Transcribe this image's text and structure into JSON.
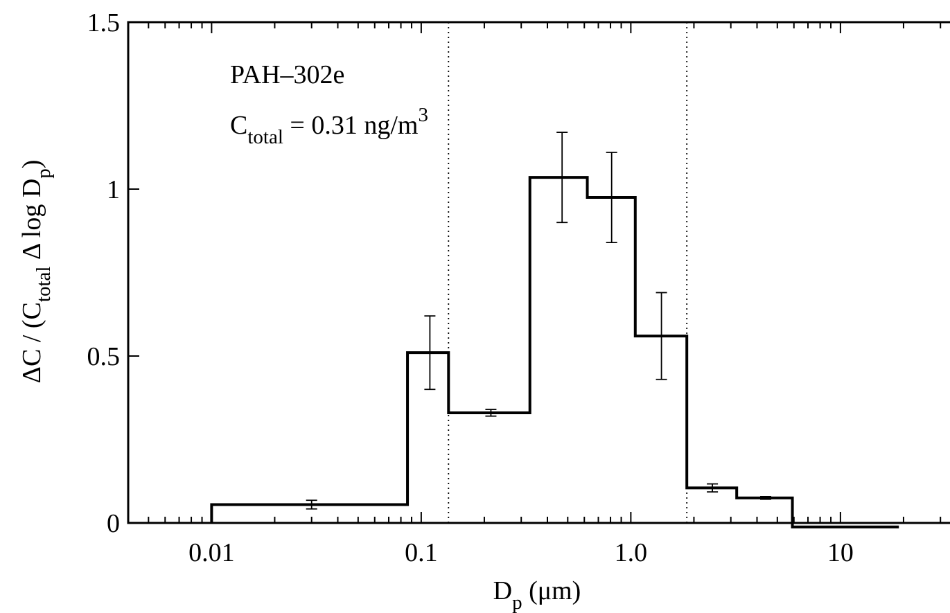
{
  "chart_data": {
    "type": "bar",
    "step_histogram": true,
    "x_scale": "log",
    "xlim": [
      0.004,
      40
    ],
    "ylim": [
      0,
      1.5
    ],
    "x_ticks": [
      {
        "value": 0.01,
        "label": "0.01"
      },
      {
        "value": 0.1,
        "label": "0.1"
      },
      {
        "value": 1.0,
        "label": "1.0"
      },
      {
        "value": 10,
        "label": "10"
      }
    ],
    "y_ticks": [
      {
        "value": 0,
        "label": "0"
      },
      {
        "value": 0.5,
        "label": "0.5"
      },
      {
        "value": 1,
        "label": "1"
      },
      {
        "value": 1.5,
        "label": "1.5"
      }
    ],
    "xlabel": {
      "main": "D",
      "sub": "p",
      "tail": "  (μm)"
    },
    "ylabel": {
      "p1": "ΔC / (C",
      "s1": "total",
      "p2": "  Δ log D",
      "s2": "p",
      "p3": ")"
    },
    "annotations": {
      "species": "PAH–302e",
      "total_main": "C",
      "total_sub": "total",
      "total_mid": " =  0.31 ng/m",
      "total_sup": "3"
    },
    "bins": [
      {
        "lo": 0.01,
        "hi": 0.086,
        "value": 0.055,
        "err_x": 0.03,
        "err_lo": 0.042,
        "err_hi": 0.068
      },
      {
        "lo": 0.086,
        "hi": 0.135,
        "value": 0.51,
        "err_x": 0.11,
        "err_lo": 0.4,
        "err_hi": 0.62
      },
      {
        "lo": 0.135,
        "hi": 0.33,
        "value": 0.33,
        "err_x": 0.215,
        "err_lo": 0.32,
        "err_hi": 0.34
      },
      {
        "lo": 0.33,
        "hi": 0.62,
        "value": 1.035,
        "err_x": 0.47,
        "err_lo": 0.9,
        "err_hi": 1.17
      },
      {
        "lo": 0.62,
        "hi": 1.05,
        "value": 0.975,
        "err_x": 0.81,
        "err_lo": 0.84,
        "err_hi": 1.11
      },
      {
        "lo": 1.05,
        "hi": 1.85,
        "value": 0.56,
        "err_x": 1.4,
        "err_lo": 0.43,
        "err_hi": 0.69
      },
      {
        "lo": 1.85,
        "hi": 3.2,
        "value": 0.105,
        "err_x": 2.45,
        "err_lo": 0.093,
        "err_hi": 0.117
      },
      {
        "lo": 3.2,
        "hi": 5.9,
        "value": 0.075,
        "err_x": 4.4,
        "err_lo": 0.071,
        "err_hi": 0.079
      },
      {
        "lo": 5.9,
        "hi": 19,
        "value": -0.012
      }
    ],
    "reference_lines_x": [
      0.135,
      1.85
    ],
    "grid": false,
    "legend": "none"
  }
}
